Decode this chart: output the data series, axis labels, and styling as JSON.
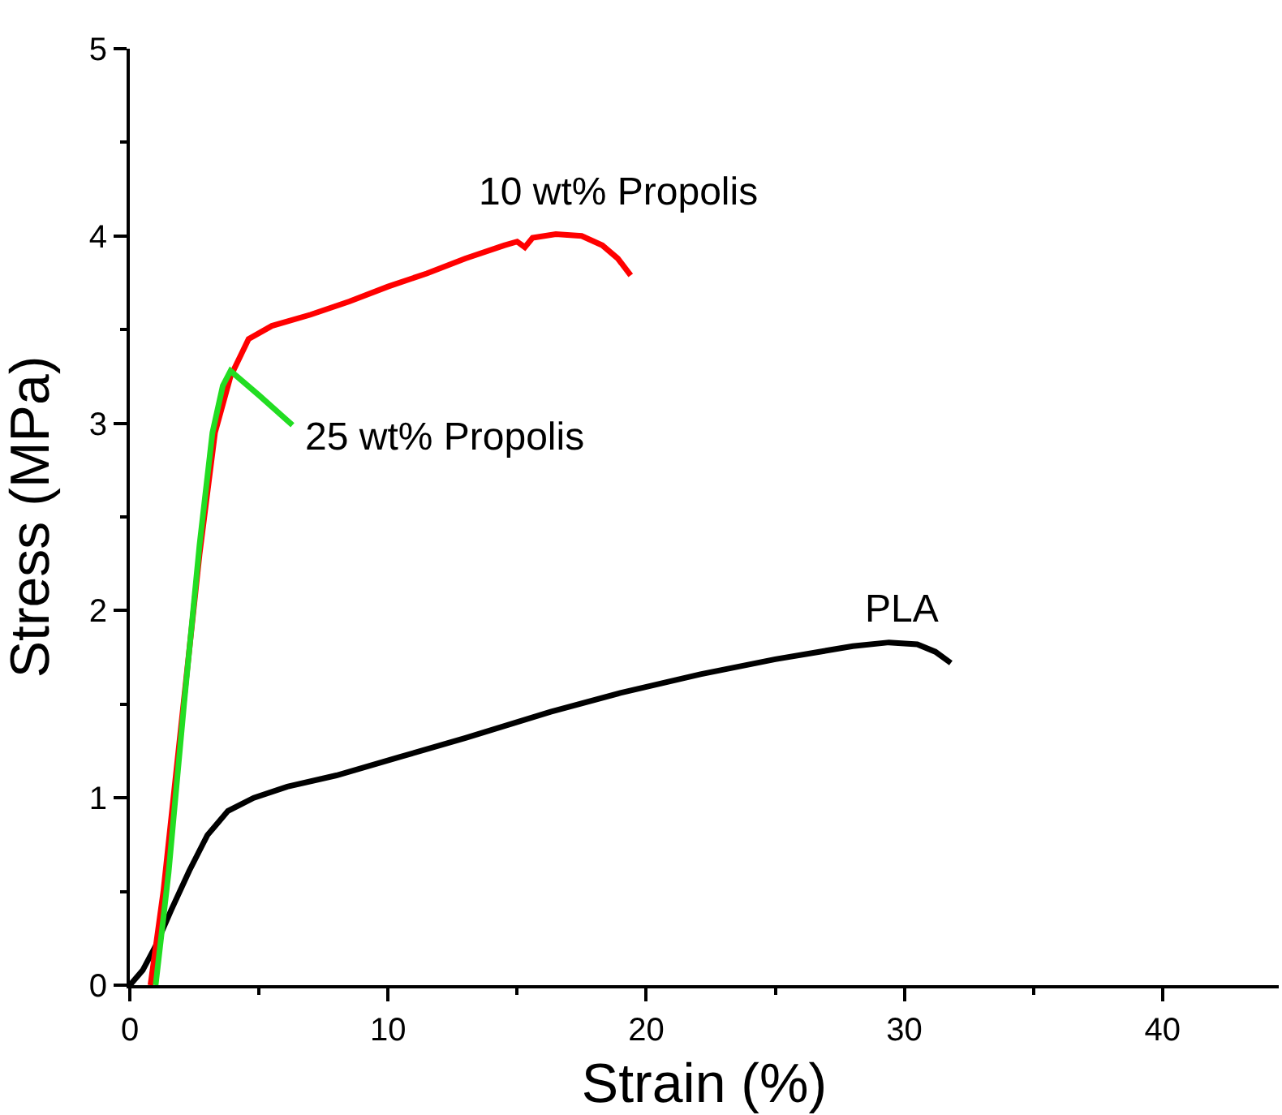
{
  "chart_data": {
    "type": "line",
    "xlabel": "Strain (%)",
    "ylabel": "Stress (MPa)",
    "xlim": [
      0,
      44.5
    ],
    "ylim": [
      0,
      5
    ],
    "xticks": [
      0,
      {
        "value": 5,
        "label": null
      },
      10,
      {
        "value": 15,
        "label": null
      },
      20,
      {
        "value": 25,
        "label": null
      },
      30,
      {
        "value": 35,
        "label": null
      },
      40
    ],
    "yticks": [
      0,
      {
        "value": 0.5,
        "label": null
      },
      1,
      {
        "value": 1.5,
        "label": null
      },
      2,
      {
        "value": 2.5,
        "label": null
      },
      3,
      {
        "value": 3.5,
        "label": null
      },
      4,
      {
        "value": 4.5,
        "label": null
      },
      5
    ],
    "grid": false,
    "legend": false,
    "marker": "none",
    "line_style": "solid",
    "series": [
      {
        "name": "PLA",
        "color": "#000000",
        "x": [
          0,
          0.5,
          1.0,
          1.6,
          2.3,
          3.0,
          3.8,
          4.8,
          6.1,
          8,
          10.5,
          13,
          16.3,
          19,
          22.1,
          25,
          28.0,
          29.4,
          30.5,
          31.2,
          31.8
        ],
        "values": [
          0,
          0.08,
          0.21,
          0.4,
          0.61,
          0.8,
          0.93,
          1.0,
          1.06,
          1.12,
          1.22,
          1.32,
          1.46,
          1.56,
          1.66,
          1.74,
          1.81,
          1.83,
          1.82,
          1.78,
          1.72
        ]
      },
      {
        "name": "10 wt% Propolis",
        "color": "#ff0000",
        "x": [
          0.8,
          1.3,
          2.0,
          2.7,
          3.3,
          3.9,
          4.6,
          5.5,
          7,
          8.5,
          10,
          11.5,
          13,
          14.5,
          15.0,
          15.3,
          15.6,
          16.5,
          17.5,
          18.3,
          18.9,
          19.4
        ],
        "values": [
          0,
          0.5,
          1.4,
          2.3,
          2.95,
          3.25,
          3.45,
          3.52,
          3.58,
          3.65,
          3.73,
          3.8,
          3.88,
          3.95,
          3.97,
          3.94,
          3.99,
          4.01,
          4.0,
          3.95,
          3.88,
          3.79
        ]
      },
      {
        "name": "25 wt% Propolis",
        "color": "#22dd22",
        "x": [
          1.0,
          1.5,
          2.1,
          2.7,
          3.2,
          3.6,
          3.9,
          5.0,
          6.3
        ],
        "values": [
          0,
          0.6,
          1.5,
          2.35,
          2.95,
          3.2,
          3.28,
          3.15,
          2.99
        ]
      }
    ]
  }
}
